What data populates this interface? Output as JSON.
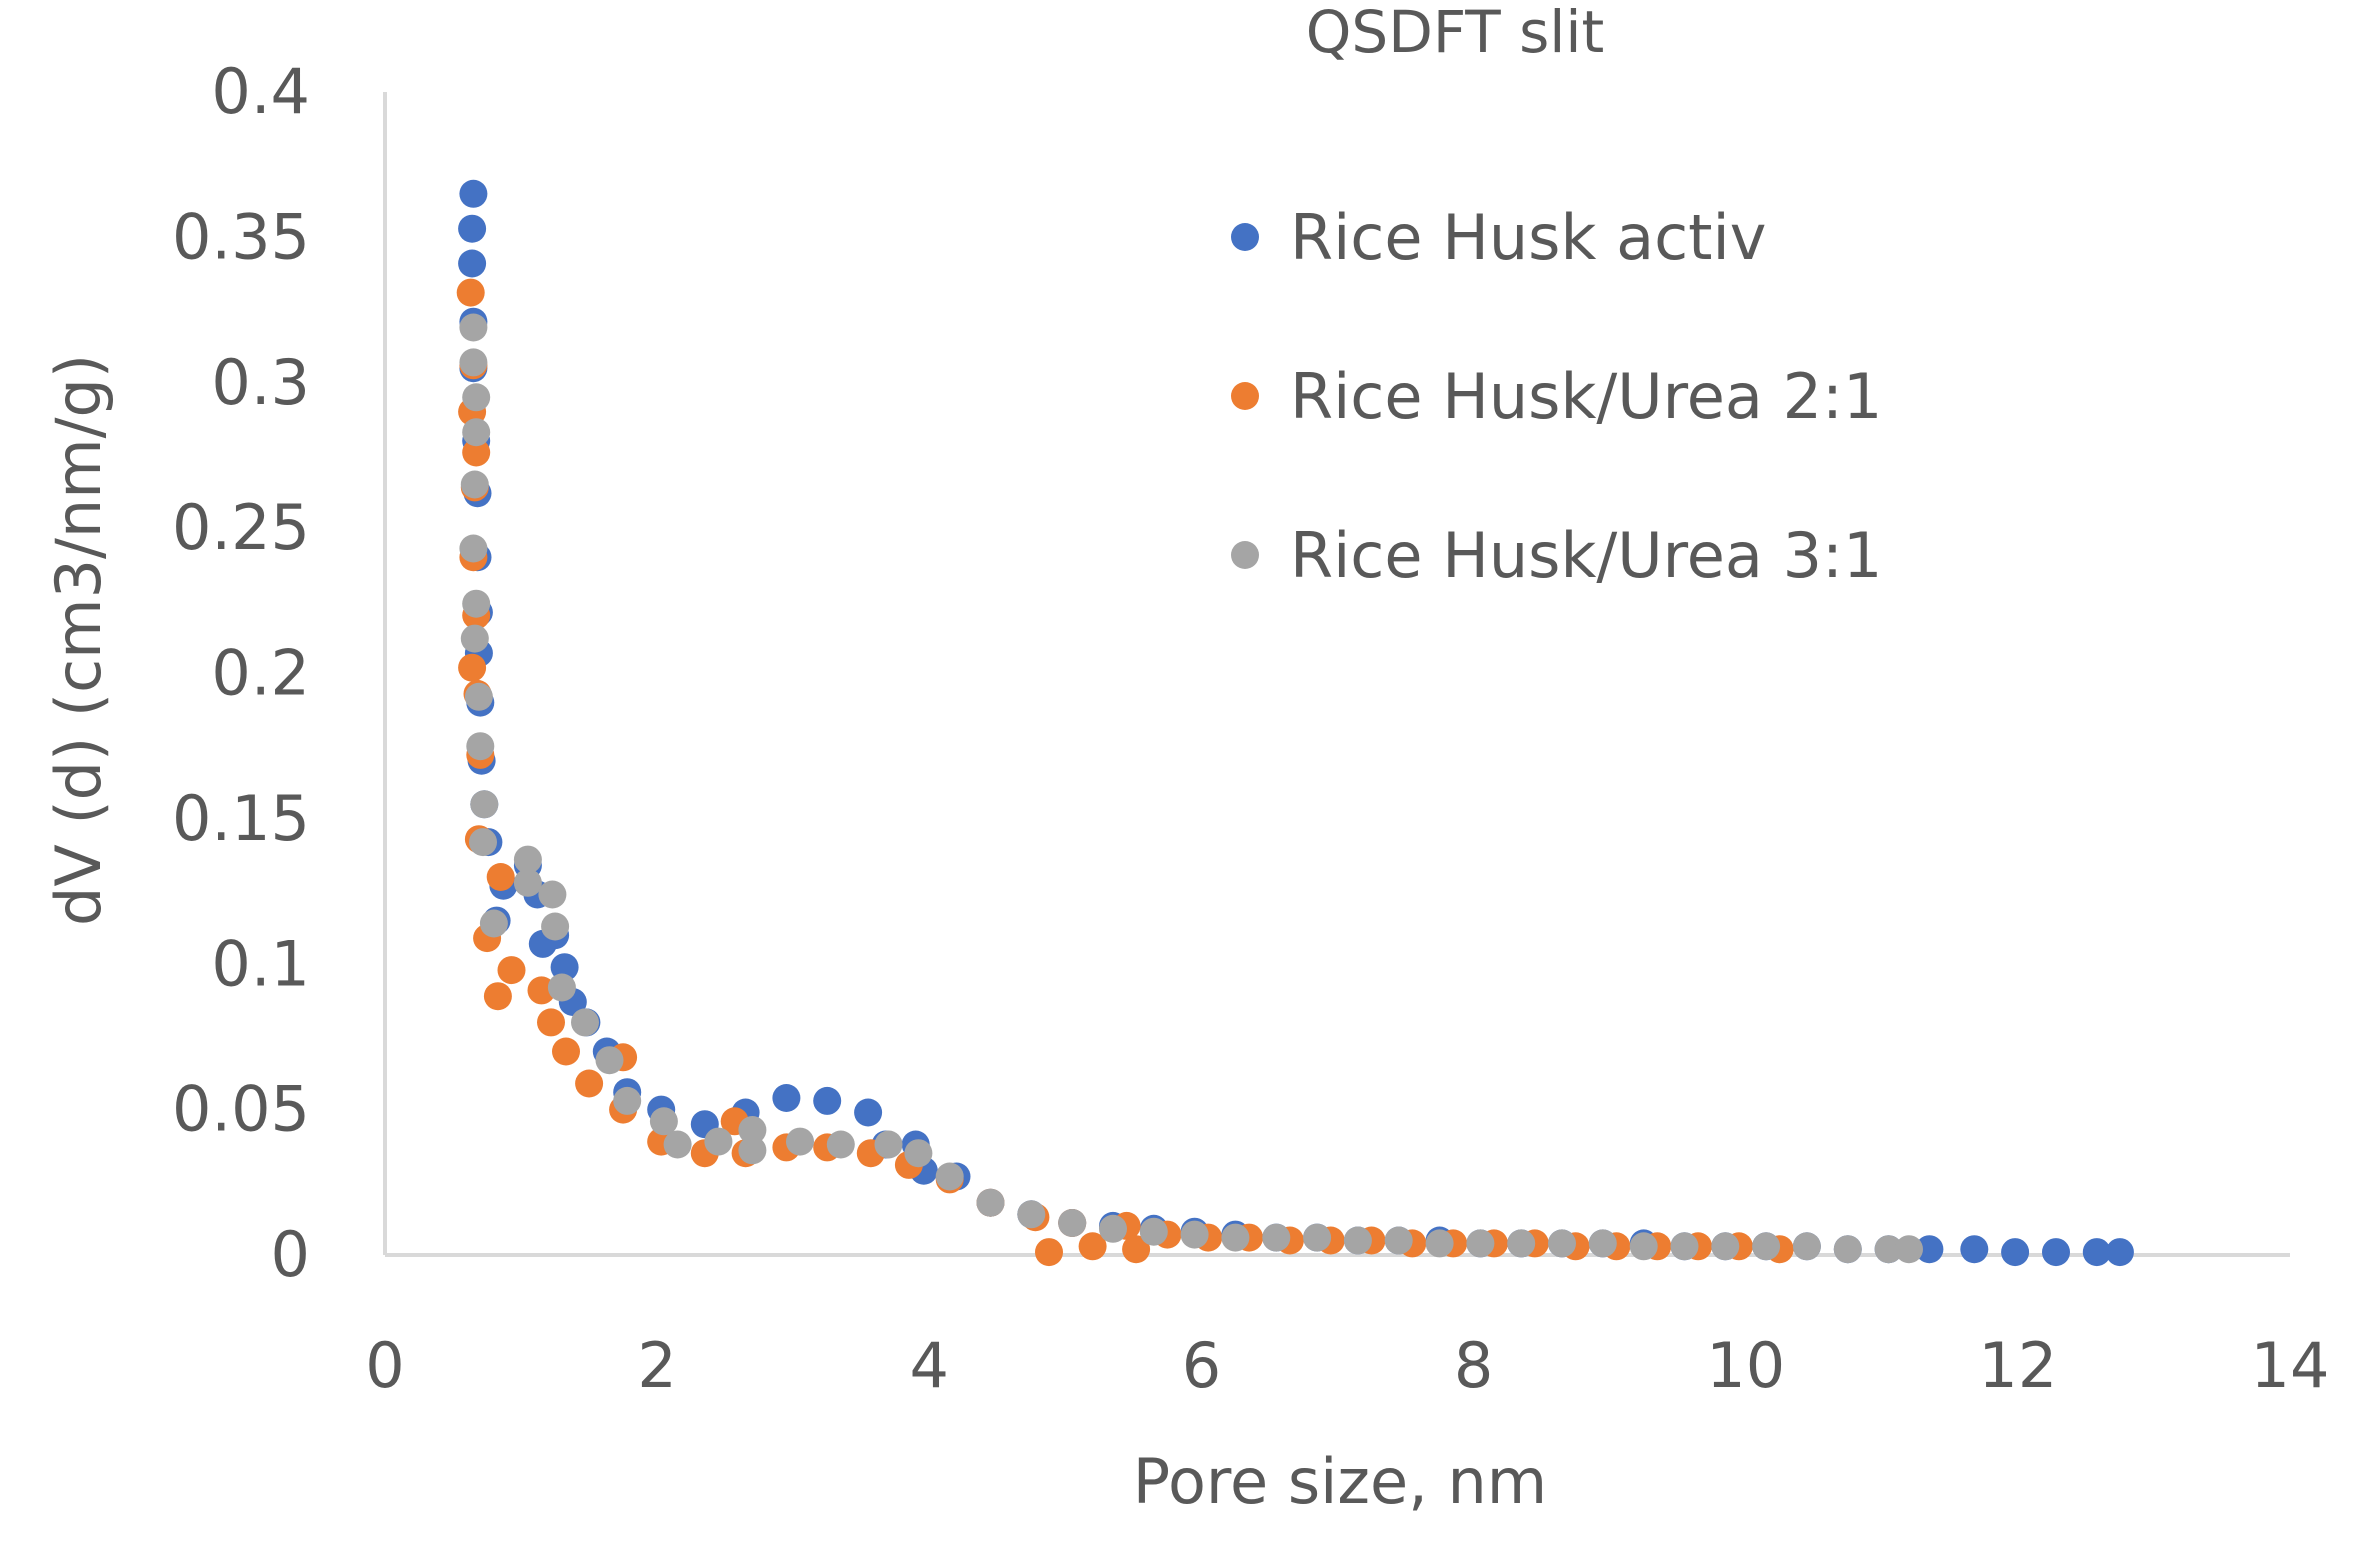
{
  "chart_data": {
    "type": "scatter",
    "title": "QSDFT slit",
    "xlabel": "Pore size, nm",
    "ylabel": "dV (d) (cm3/nm/g)",
    "xlim": [
      0,
      14
    ],
    "ylim": [
      0,
      0.4
    ],
    "x_ticks": [
      0,
      2,
      4,
      6,
      8,
      10,
      12,
      14
    ],
    "y_ticks": [
      0,
      0.05,
      0.1,
      0.15,
      0.2,
      0.25,
      0.3,
      0.35,
      0.4
    ],
    "x_tick_labels": [
      "0",
      "2",
      "4",
      "6",
      "8",
      "10",
      "12",
      "14"
    ],
    "y_tick_labels": [
      "0",
      "0.05",
      "0.1",
      "0.15",
      "0.2",
      "0.25",
      "0.3",
      "0.35",
      "0.4"
    ],
    "grid": false,
    "legend_position": "top-right",
    "series": [
      {
        "name": "Rice Husk activ",
        "color": "#4472C4",
        "points": [
          [
            0.65,
            0.365
          ],
          [
            0.64,
            0.353
          ],
          [
            0.64,
            0.341
          ],
          [
            0.65,
            0.321
          ],
          [
            0.65,
            0.305
          ],
          [
            0.67,
            0.28
          ],
          [
            0.68,
            0.262
          ],
          [
            0.68,
            0.24
          ],
          [
            0.69,
            0.221
          ],
          [
            0.69,
            0.207
          ],
          [
            0.7,
            0.19
          ],
          [
            0.71,
            0.17
          ],
          [
            0.73,
            0.155
          ],
          [
            0.76,
            0.142
          ],
          [
            0.82,
            0.115
          ],
          [
            0.87,
            0.127
          ],
          [
            1.05,
            0.134
          ],
          [
            1.12,
            0.124
          ],
          [
            1.16,
            0.107
          ],
          [
            1.25,
            0.11
          ],
          [
            1.32,
            0.099
          ],
          [
            1.38,
            0.087
          ],
          [
            1.48,
            0.08
          ],
          [
            1.63,
            0.07
          ],
          [
            1.78,
            0.056
          ],
          [
            2.03,
            0.05
          ],
          [
            2.35,
            0.045
          ],
          [
            2.65,
            0.049
          ],
          [
            2.95,
            0.054
          ],
          [
            3.25,
            0.053
          ],
          [
            3.55,
            0.049
          ],
          [
            3.68,
            0.038
          ],
          [
            3.9,
            0.038
          ],
          [
            3.96,
            0.029
          ],
          [
            4.2,
            0.027
          ],
          [
            4.45,
            0.018
          ],
          [
            4.75,
            0.014
          ],
          [
            5.05,
            0.011
          ],
          [
            5.35,
            0.01
          ],
          [
            5.65,
            0.009
          ],
          [
            5.95,
            0.008
          ],
          [
            6.25,
            0.007
          ],
          [
            6.55,
            0.006
          ],
          [
            6.85,
            0.006
          ],
          [
            7.15,
            0.005
          ],
          [
            7.45,
            0.005
          ],
          [
            7.75,
            0.005
          ],
          [
            8.05,
            0.004
          ],
          [
            8.35,
            0.004
          ],
          [
            8.65,
            0.004
          ],
          [
            8.95,
            0.004
          ],
          [
            9.25,
            0.004
          ],
          [
            9.55,
            0.003
          ],
          [
            9.85,
            0.003
          ],
          [
            10.15,
            0.003
          ],
          [
            10.45,
            0.003
          ],
          [
            10.75,
            0.002
          ],
          [
            11.05,
            0.002
          ],
          [
            11.35,
            0.002
          ],
          [
            11.68,
            0.002
          ],
          [
            11.98,
            0.001
          ],
          [
            12.28,
            0.001
          ],
          [
            12.58,
            0.001
          ],
          [
            12.75,
            0.001
          ]
        ]
      },
      {
        "name": "Rice Husk/Urea 2:1",
        "color": "#ED7D31",
        "points": [
          [
            0.63,
            0.331
          ],
          [
            0.65,
            0.306
          ],
          [
            0.64,
            0.29
          ],
          [
            0.67,
            0.276
          ],
          [
            0.66,
            0.264
          ],
          [
            0.65,
            0.24
          ],
          [
            0.67,
            0.22
          ],
          [
            0.64,
            0.202
          ],
          [
            0.68,
            0.193
          ],
          [
            0.7,
            0.172
          ],
          [
            0.69,
            0.143
          ],
          [
            0.75,
            0.109
          ],
          [
            0.83,
            0.089
          ],
          [
            0.85,
            0.13
          ],
          [
            0.93,
            0.098
          ],
          [
            1.15,
            0.091
          ],
          [
            1.22,
            0.08
          ],
          [
            1.33,
            0.07
          ],
          [
            1.5,
            0.059
          ],
          [
            1.75,
            0.068
          ],
          [
            1.75,
            0.05
          ],
          [
            2.03,
            0.039
          ],
          [
            2.35,
            0.035
          ],
          [
            2.57,
            0.046
          ],
          [
            2.65,
            0.035
          ],
          [
            2.95,
            0.037
          ],
          [
            3.25,
            0.037
          ],
          [
            3.57,
            0.035
          ],
          [
            3.85,
            0.031
          ],
          [
            4.15,
            0.026
          ],
          [
            4.45,
            0.018
          ],
          [
            4.78,
            0.013
          ],
          [
            4.88,
            0.001
          ],
          [
            5.05,
            0.011
          ],
          [
            5.2,
            0.003
          ],
          [
            5.45,
            0.01
          ],
          [
            5.52,
            0.002
          ],
          [
            5.75,
            0.007
          ],
          [
            6.05,
            0.006
          ],
          [
            6.35,
            0.006
          ],
          [
            6.65,
            0.005
          ],
          [
            6.95,
            0.005
          ],
          [
            7.25,
            0.005
          ],
          [
            7.55,
            0.004
          ],
          [
            7.85,
            0.004
          ],
          [
            8.15,
            0.004
          ],
          [
            8.45,
            0.004
          ],
          [
            8.75,
            0.003
          ],
          [
            9.05,
            0.003
          ],
          [
            9.35,
            0.003
          ],
          [
            9.65,
            0.003
          ],
          [
            9.95,
            0.003
          ],
          [
            10.25,
            0.002
          ]
        ]
      },
      {
        "name": "Rice Husk/Urea 3:1",
        "color": "#A5A5A5",
        "points": [
          [
            0.65,
            0.319
          ],
          [
            0.65,
            0.307
          ],
          [
            0.67,
            0.295
          ],
          [
            0.67,
            0.283
          ],
          [
            0.66,
            0.265
          ],
          [
            0.65,
            0.243
          ],
          [
            0.67,
            0.224
          ],
          [
            0.66,
            0.212
          ],
          [
            0.69,
            0.192
          ],
          [
            0.7,
            0.175
          ],
          [
            0.73,
            0.155
          ],
          [
            0.72,
            0.142
          ],
          [
            0.8,
            0.114
          ],
          [
            1.05,
            0.136
          ],
          [
            1.05,
            0.128
          ],
          [
            1.23,
            0.124
          ],
          [
            1.25,
            0.113
          ],
          [
            1.3,
            0.092
          ],
          [
            1.47,
            0.08
          ],
          [
            1.65,
            0.067
          ],
          [
            1.78,
            0.053
          ],
          [
            2.05,
            0.046
          ],
          [
            2.15,
            0.038
          ],
          [
            2.45,
            0.039
          ],
          [
            2.7,
            0.043
          ],
          [
            2.7,
            0.036
          ],
          [
            3.05,
            0.039
          ],
          [
            3.35,
            0.038
          ],
          [
            3.7,
            0.038
          ],
          [
            3.92,
            0.035
          ],
          [
            4.15,
            0.027
          ],
          [
            4.45,
            0.018
          ],
          [
            4.75,
            0.014
          ],
          [
            5.05,
            0.011
          ],
          [
            5.35,
            0.009
          ],
          [
            5.65,
            0.008
          ],
          [
            5.95,
            0.007
          ],
          [
            6.25,
            0.006
          ],
          [
            6.55,
            0.006
          ],
          [
            6.85,
            0.006
          ],
          [
            7.15,
            0.005
          ],
          [
            7.45,
            0.005
          ],
          [
            7.75,
            0.004
          ],
          [
            8.05,
            0.004
          ],
          [
            8.35,
            0.004
          ],
          [
            8.65,
            0.004
          ],
          [
            8.95,
            0.004
          ],
          [
            9.25,
            0.003
          ],
          [
            9.55,
            0.003
          ],
          [
            9.85,
            0.003
          ],
          [
            10.15,
            0.003
          ],
          [
            10.45,
            0.003
          ],
          [
            10.75,
            0.002
          ],
          [
            11.05,
            0.002
          ],
          [
            11.2,
            0.002
          ]
        ]
      }
    ]
  }
}
